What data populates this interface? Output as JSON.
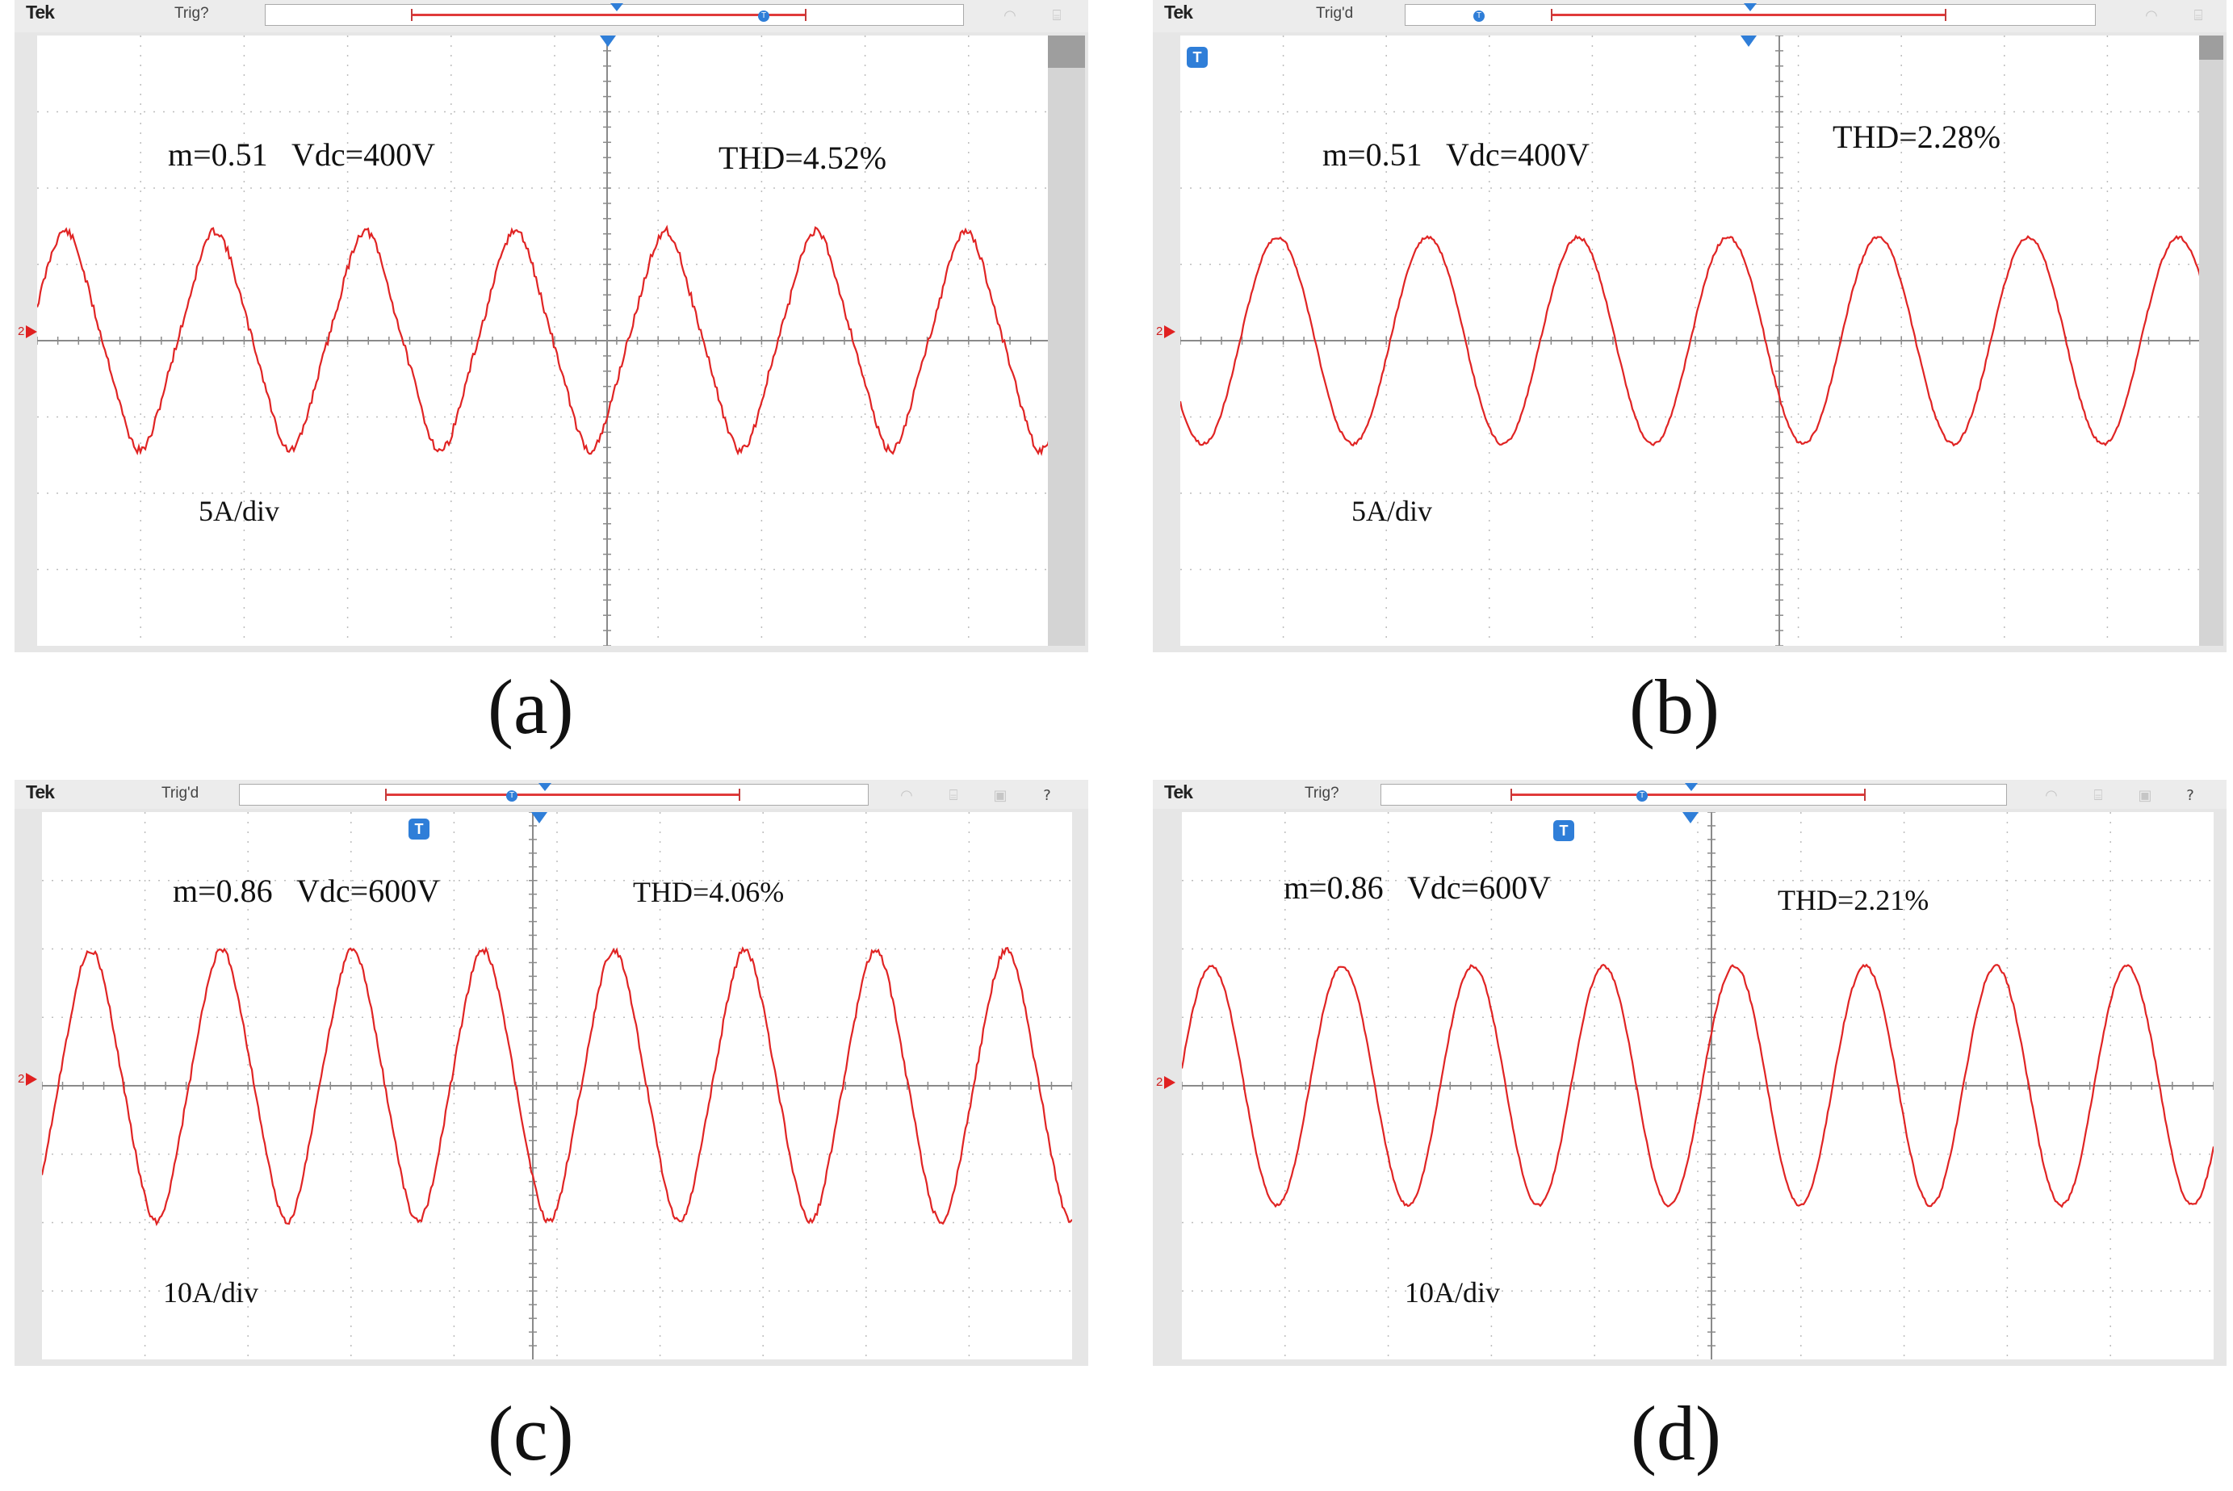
{
  "panels": [
    {
      "id": "a",
      "brand": "Tek",
      "trigger_status": "Trig?",
      "ground_marker": "2",
      "label_params": "m=0.51   Vdc=400V",
      "label_thd": "THD=4.52%",
      "label_scale": "5A/div",
      "caption": "(a)",
      "icons": [
        "wifi-icon",
        "network-icon"
      ]
    },
    {
      "id": "b",
      "brand": "Tek",
      "trigger_status": "Trig'd",
      "ground_marker": "2",
      "label_params": "m=0.51   Vdc=400V",
      "label_thd": "THD=2.28%",
      "label_scale": "5A/div",
      "caption": "(b)",
      "icons": [
        "wifi-icon",
        "network-icon"
      ]
    },
    {
      "id": "c",
      "brand": "Tek",
      "trigger_status": "Trig'd",
      "ground_marker": "2",
      "label_params": "m=0.86   Vdc=600V",
      "label_thd": "THD=4.06%",
      "label_scale": "10A/div",
      "caption": "(c)",
      "icons": [
        "wifi-icon",
        "network-icon",
        "save-icon",
        "help-icon"
      ]
    },
    {
      "id": "d",
      "brand": "Tek",
      "trigger_status": "Trig?",
      "ground_marker": "2",
      "label_params": "m=0.86   Vdc=600V",
      "label_thd": "THD=2.21%",
      "label_scale": "10A/div",
      "caption": "(d)",
      "icons": [
        "wifi-icon",
        "network-icon",
        "save-icon",
        "help-icon"
      ]
    }
  ],
  "colors": {
    "trace": "#e02424",
    "grid": "#bdbdbd",
    "frame": "#e6e6e6",
    "accent": "#2f7ed8"
  }
}
